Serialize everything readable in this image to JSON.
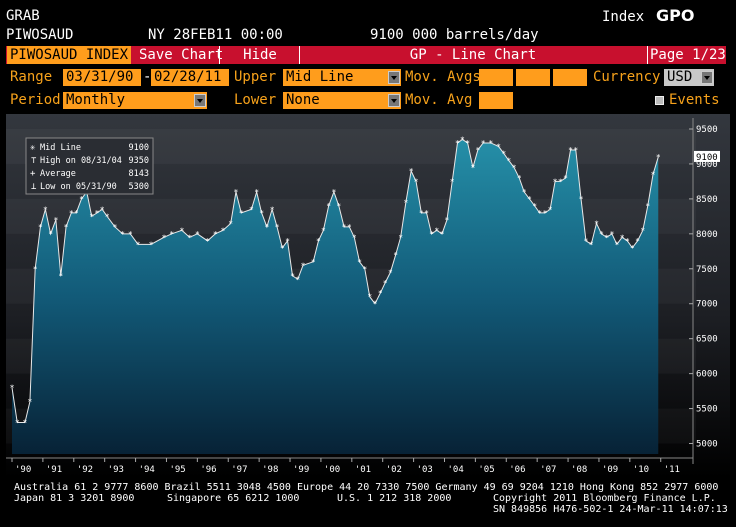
{
  "header": {
    "grab": "GRAB",
    "ticker": "PIWOSAUD",
    "datetime": "NY 28FEB11 00:00",
    "value": "9100 000 barrels/day",
    "index_label": "Index",
    "function_code": "GPO"
  },
  "toolbar": {
    "security": "PIWOSAUD INDEX",
    "save_chart": "Save Chart",
    "hide": "Hide",
    "chart_title": "GP - Line Chart",
    "page": "Page 1/23"
  },
  "controls": {
    "range_label": "Range",
    "range_from": "03/31/90",
    "range_sep": "-",
    "range_to": "02/28/11",
    "upper_label": "Upper",
    "upper_value": "Mid Line",
    "mov_avgs_label": "Mov. Avgs",
    "currency_label": "Currency",
    "currency_value": "USD",
    "period_label": "Period",
    "period_value": "Monthly",
    "lower_label": "Lower",
    "lower_value": "None",
    "mov_avg_label": "Mov. Avg",
    "events_label": "Events"
  },
  "legend": {
    "rows": [
      {
        "label": "Mid Line",
        "value": "9100"
      },
      {
        "label": "High on 08/31/04",
        "value": "9350"
      },
      {
        "label": "Average",
        "value": "8143"
      },
      {
        "label": "Low on 05/31/90",
        "value": "5300"
      }
    ]
  },
  "chart_data": {
    "type": "area",
    "series": [
      {
        "name": "Mid Line",
        "values": [
          [
            1990.0,
            5800
          ],
          [
            1990.17,
            5300
          ],
          [
            1990.42,
            5300
          ],
          [
            1990.58,
            5600
          ],
          [
            1990.75,
            7500
          ],
          [
            1990.92,
            8100
          ],
          [
            1991.08,
            8350
          ],
          [
            1991.25,
            8000
          ],
          [
            1991.42,
            8200
          ],
          [
            1991.58,
            7400
          ],
          [
            1991.75,
            8100
          ],
          [
            1991.92,
            8300
          ],
          [
            1992.08,
            8300
          ],
          [
            1992.25,
            8500
          ],
          [
            1992.42,
            8600
          ],
          [
            1992.58,
            8250
          ],
          [
            1992.75,
            8300
          ],
          [
            1992.92,
            8350
          ],
          [
            1993.08,
            8250
          ],
          [
            1993.33,
            8100
          ],
          [
            1993.58,
            8000
          ],
          [
            1993.83,
            8000
          ],
          [
            1994.08,
            7850
          ],
          [
            1994.5,
            7850
          ],
          [
            1994.92,
            7950
          ],
          [
            1995.17,
            8000
          ],
          [
            1995.5,
            8050
          ],
          [
            1995.75,
            7950
          ],
          [
            1996.0,
            8000
          ],
          [
            1996.33,
            7900
          ],
          [
            1996.58,
            8000
          ],
          [
            1996.83,
            8050
          ],
          [
            1997.08,
            8150
          ],
          [
            1997.25,
            8600
          ],
          [
            1997.42,
            8300
          ],
          [
            1997.75,
            8350
          ],
          [
            1997.92,
            8600
          ],
          [
            1998.08,
            8300
          ],
          [
            1998.25,
            8100
          ],
          [
            1998.42,
            8350
          ],
          [
            1998.58,
            8100
          ],
          [
            1998.75,
            7800
          ],
          [
            1998.92,
            7900
          ],
          [
            1999.08,
            7400
          ],
          [
            1999.25,
            7350
          ],
          [
            1999.42,
            7550
          ],
          [
            1999.75,
            7600
          ],
          [
            1999.92,
            7900
          ],
          [
            2000.08,
            8050
          ],
          [
            2000.25,
            8400
          ],
          [
            2000.42,
            8600
          ],
          [
            2000.58,
            8400
          ],
          [
            2000.75,
            8100
          ],
          [
            2000.92,
            8100
          ],
          [
            2001.08,
            7950
          ],
          [
            2001.25,
            7600
          ],
          [
            2001.42,
            7500
          ],
          [
            2001.58,
            7100
          ],
          [
            2001.75,
            7000
          ],
          [
            2001.92,
            7150
          ],
          [
            2002.08,
            7300
          ],
          [
            2002.25,
            7450
          ],
          [
            2002.42,
            7700
          ],
          [
            2002.58,
            7950
          ],
          [
            2002.75,
            8450
          ],
          [
            2002.92,
            8900
          ],
          [
            2003.08,
            8750
          ],
          [
            2003.25,
            8300
          ],
          [
            2003.42,
            8300
          ],
          [
            2003.58,
            8000
          ],
          [
            2003.75,
            8050
          ],
          [
            2003.92,
            8000
          ],
          [
            2004.08,
            8200
          ],
          [
            2004.25,
            8750
          ],
          [
            2004.42,
            9300
          ],
          [
            2004.58,
            9350
          ],
          [
            2004.75,
            9300
          ],
          [
            2004.92,
            8950
          ],
          [
            2005.08,
            9200
          ],
          [
            2005.25,
            9300
          ],
          [
            2005.5,
            9300
          ],
          [
            2005.75,
            9250
          ],
          [
            2005.92,
            9150
          ],
          [
            2006.08,
            9050
          ],
          [
            2006.25,
            8950
          ],
          [
            2006.42,
            8800
          ],
          [
            2006.58,
            8600
          ],
          [
            2006.75,
            8500
          ],
          [
            2006.92,
            8400
          ],
          [
            2007.08,
            8300
          ],
          [
            2007.25,
            8300
          ],
          [
            2007.42,
            8350
          ],
          [
            2007.58,
            8750
          ],
          [
            2007.75,
            8750
          ],
          [
            2007.92,
            8800
          ],
          [
            2008.08,
            9200
          ],
          [
            2008.25,
            9200
          ],
          [
            2008.42,
            8500
          ],
          [
            2008.58,
            7900
          ],
          [
            2008.75,
            7850
          ],
          [
            2008.92,
            8150
          ],
          [
            2009.08,
            8000
          ],
          [
            2009.25,
            7950
          ],
          [
            2009.42,
            8000
          ],
          [
            2009.58,
            7850
          ],
          [
            2009.75,
            7950
          ],
          [
            2009.92,
            7900
          ],
          [
            2010.08,
            7800
          ],
          [
            2010.25,
            7900
          ],
          [
            2010.42,
            8050
          ],
          [
            2010.58,
            8400
          ],
          [
            2010.75,
            8850
          ],
          [
            2010.92,
            9100
          ]
        ]
      }
    ],
    "x_ticks": [
      "'90",
      "'91",
      "'92",
      "'93",
      "'94",
      "'95",
      "'96",
      "'97",
      "'98",
      "'99",
      "'00",
      "'01",
      "'02",
      "'03",
      "'04",
      "'05",
      "'06",
      "'07",
      "'08",
      "'09",
      "'10",
      "'11"
    ],
    "y_ticks": [
      5000,
      5500,
      6000,
      6500,
      7000,
      7500,
      8000,
      8500,
      9000,
      9500
    ],
    "ylim": [
      4850,
      9600
    ],
    "xlim": [
      1990.0,
      2011.3
    ],
    "last_value": "9100",
    "grid": false
  },
  "footer": {
    "line1": "Australia 61 2 9777 8600 Brazil 5511 3048 4500 Europe 44 20 7330 7500 Germany 49 69 9204 1210 Hong Kong 852 2977 6000",
    "line2_left": "Japan 81 3 3201 8900",
    "line2_mid": "Singapore 65 6212 1000",
    "line2_us": "U.S. 1 212 318 2000",
    "line2_right": "Copyright 2011 Bloomberg Finance L.P.",
    "line3": "SN 849856 H476-502-1 24-Mar-11 14:07:13"
  }
}
